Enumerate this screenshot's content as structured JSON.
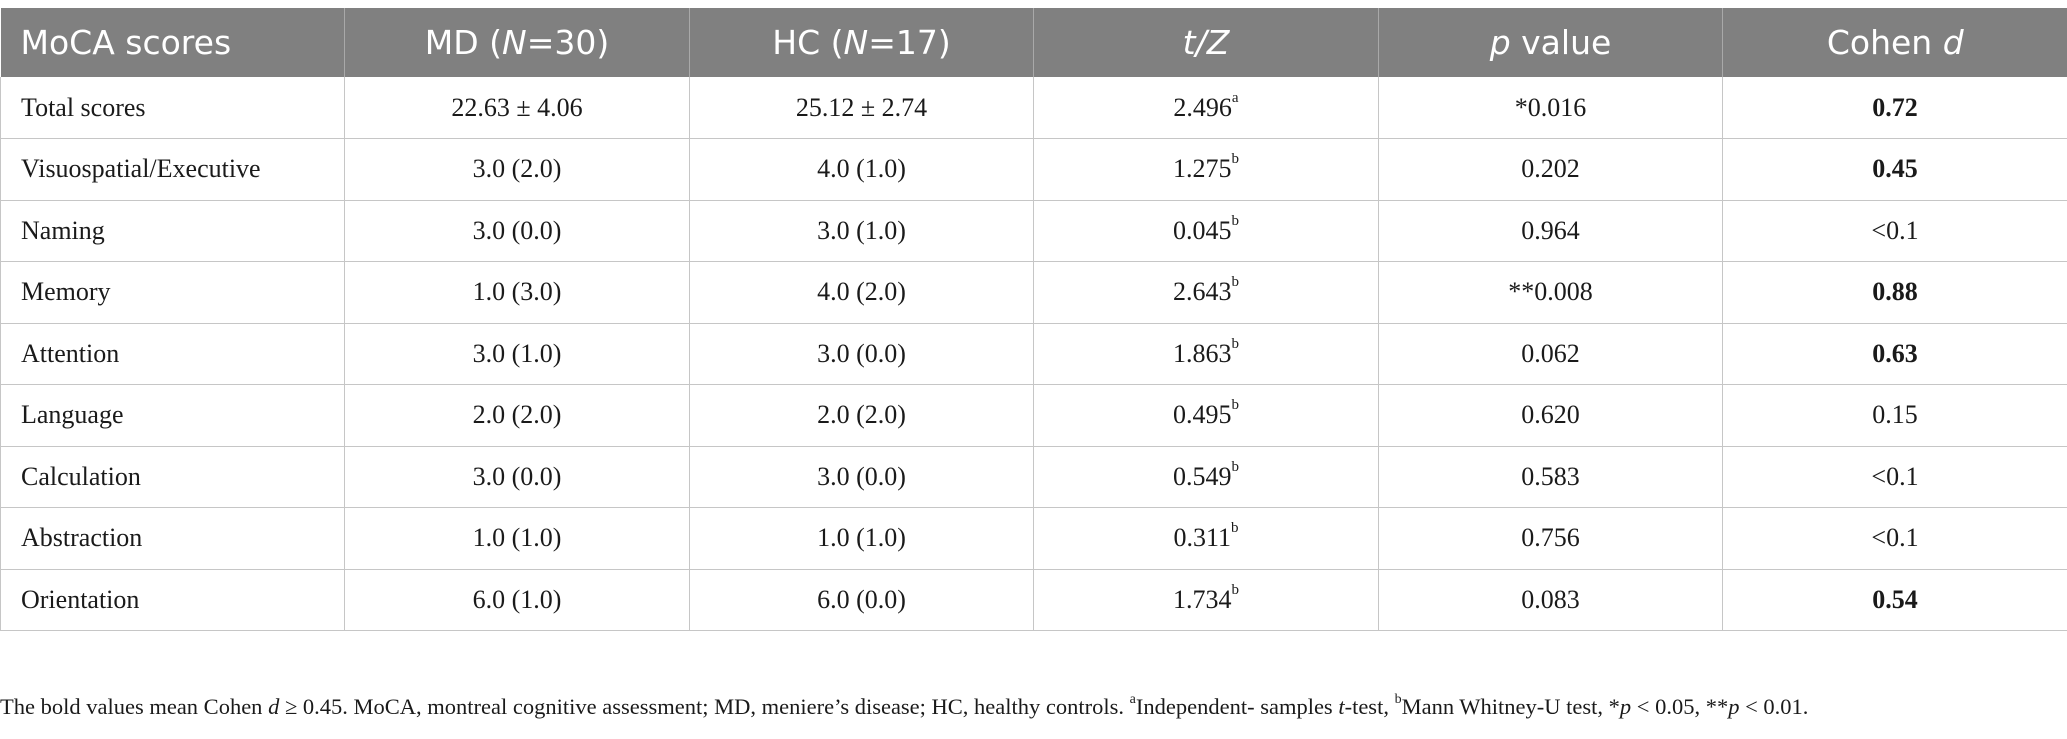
{
  "table": {
    "headers": [
      {
        "text": "MoCA scores"
      },
      {
        "pre": "MD (",
        "ital": "N",
        "post": "=30)"
      },
      {
        "pre": "HC (",
        "ital": "N",
        "post": "=17)"
      },
      {
        "pre": "",
        "ital": "t/Z",
        "post": ""
      },
      {
        "pre": "",
        "ital": "p",
        "post": " value"
      },
      {
        "pre": "Cohen ",
        "ital": "d",
        "post": ""
      }
    ],
    "rows": [
      {
        "label": "Total scores",
        "md": "22.63 ± 4.06",
        "hc": "25.12 ± 2.74",
        "tz": "2.496",
        "tz_sup": "a",
        "p": "*0.016",
        "d": "0.72",
        "d_bold": true
      },
      {
        "label": "Visuospatial/Executive",
        "md": "3.0 (2.0)",
        "hc": "4.0 (1.0)",
        "tz": "1.275",
        "tz_sup": "b",
        "p": "0.202",
        "d": "0.45",
        "d_bold": true
      },
      {
        "label": "Naming",
        "md": "3.0 (0.0)",
        "hc": "3.0 (1.0)",
        "tz": "0.045",
        "tz_sup": "b",
        "p": "0.964",
        "d": "<0.1",
        "d_bold": false
      },
      {
        "label": "Memory",
        "md": "1.0 (3.0)",
        "hc": "4.0 (2.0)",
        "tz": "2.643",
        "tz_sup": "b",
        "p": "**0.008",
        "d": "0.88",
        "d_bold": true
      },
      {
        "label": "Attention",
        "md": "3.0 (1.0)",
        "hc": "3.0 (0.0)",
        "tz": "1.863",
        "tz_sup": "b",
        "p": "0.062",
        "d": "0.63",
        "d_bold": true
      },
      {
        "label": "Language",
        "md": "2.0 (2.0)",
        "hc": "2.0 (2.0)",
        "tz": "0.495",
        "tz_sup": "b",
        "p": "0.620",
        "d": "0.15",
        "d_bold": false
      },
      {
        "label": "Calculation",
        "md": "3.0 (0.0)",
        "hc": "3.0 (0.0)",
        "tz": "0.549",
        "tz_sup": "b",
        "p": "0.583",
        "d": "<0.1",
        "d_bold": false
      },
      {
        "label": "Abstraction",
        "md": "1.0 (1.0)",
        "hc": "1.0 (1.0)",
        "tz": "0.311",
        "tz_sup": "b",
        "p": "0.756",
        "d": "<0.1",
        "d_bold": false
      },
      {
        "label": "Orientation",
        "md": "6.0 (1.0)",
        "hc": "6.0 (0.0)",
        "tz": "1.734",
        "tz_sup": "b",
        "p": "0.083",
        "d": "0.54",
        "d_bold": true
      }
    ]
  },
  "footnote": {
    "part1": "The bold values mean Cohen ",
    "d": "d",
    "part2": " ≥ 0.45. MoCA, montreal cognitive assessment; MD, meniere’s disease; HC, healthy controls. ",
    "sup_a": "a",
    "part3": "Independent- samples ",
    "t": "t",
    "part4": "-test, ",
    "sup_b": "b",
    "part5": "Mann Whitney-U test, *",
    "p1": "p",
    "part6": " < 0.05, **",
    "p2": "p",
    "part7": " < 0.01."
  },
  "colors": {
    "header_bg": "#808080",
    "header_text": "#ffffff",
    "grid": "#c6c6c6",
    "body_text": "#1a1a1a"
  }
}
